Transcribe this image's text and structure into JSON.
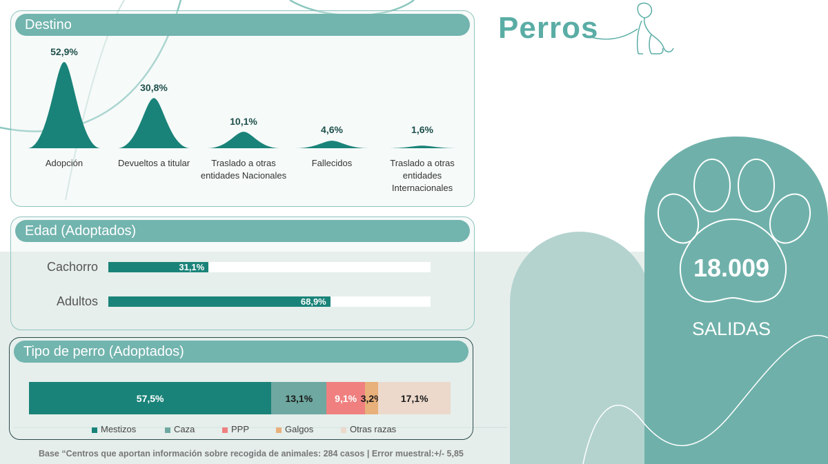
{
  "title": "Perros",
  "destino": {
    "header": "Destino",
    "chart_data": {
      "type": "area",
      "categories": [
        "Adopción",
        "Devueltos a titular",
        "Traslado a otras entidades Nacionales",
        "Fallecidos",
        "Traslado a otras entidades Internacionales"
      ],
      "category_lines": [
        [
          "Adopción"
        ],
        [
          "Devueltos a titular"
        ],
        [
          "Traslado a otras",
          "entidades Nacionales"
        ],
        [
          "Fallecidos"
        ],
        [
          "Traslado a otras",
          "entidades",
          "Internacionales"
        ]
      ],
      "values": [
        52.9,
        30.8,
        10.1,
        4.6,
        1.6
      ],
      "labels": [
        "52,9%",
        "30,8%",
        "10,1%",
        "4,6%",
        "1,6%"
      ],
      "color": "#1a8379"
    }
  },
  "edad": {
    "header": "Edad (Adoptados)",
    "chart_data": {
      "type": "bar",
      "categories": [
        "Cachorro",
        "Adultos"
      ],
      "values": [
        31.1,
        68.9
      ],
      "labels": [
        "31,1%",
        "68,9%"
      ],
      "color": "#1a8379"
    }
  },
  "tipo": {
    "header": "Tipo de perro (Adoptados)",
    "chart_data": {
      "type": "bar",
      "stacked": true,
      "series": [
        {
          "name": "Mestizos",
          "value": 57.5,
          "label": "57,5%",
          "color": "#1a8379",
          "text_color": "#ffffff"
        },
        {
          "name": "Caza",
          "value": 13.1,
          "label": "13,1%",
          "color": "#6ea8a0",
          "text_color": "#1a1a1a"
        },
        {
          "name": "PPP",
          "value": 9.1,
          "label": "9,1%",
          "color": "#f08080",
          "text_color": "#ffffff"
        },
        {
          "name": "Galgos",
          "value": 3.2,
          "label": "3,2%",
          "color": "#e8b07a",
          "text_color": "#1a1a1a"
        },
        {
          "name": "Otras razas",
          "value": 17.1,
          "label": "17,1%",
          "color": "#ecd9cc",
          "text_color": "#1a1a1a"
        }
      ],
      "legend_position": "bottom"
    }
  },
  "total": {
    "value": "18.009",
    "label": "SALIDAS"
  },
  "footer": "Base “Centros que aportan información sobre recogida de animales: 284 casos | Error muestral:+/- 5,85"
}
